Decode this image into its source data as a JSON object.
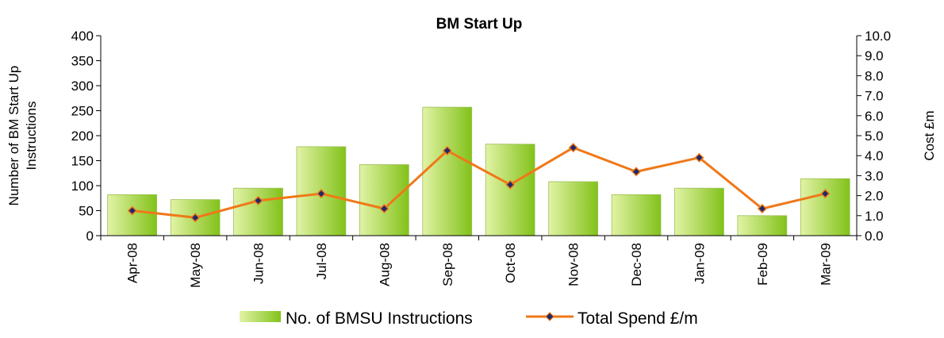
{
  "chart_data": {
    "type": "bar",
    "title": "BM Start Up",
    "ylabel": "Number of BM Start Up Instructions",
    "y2label": "Cost £m",
    "categories": [
      "Apr-08",
      "May-08",
      "Jun-08",
      "Jul-08",
      "Aug-08",
      "Sep-08",
      "Oct-08",
      "Nov-08",
      "Dec-08",
      "Jan-09",
      "Feb-09",
      "Mar-09"
    ],
    "ylim": [
      0,
      400
    ],
    "y2lim": [
      0,
      10
    ],
    "yticks": [
      "0",
      "50",
      "100",
      "150",
      "200",
      "250",
      "300",
      "350",
      "400"
    ],
    "y2ticks": [
      "0.0",
      "1.0",
      "2.0",
      "3.0",
      "4.0",
      "5.0",
      "6.0",
      "7.0",
      "8.0",
      "9.0",
      "10.0"
    ],
    "series": [
      {
        "name": "No. of BMSU Instructions",
        "type": "bar",
        "axis": "left",
        "values": [
          82,
          72,
          95,
          178,
          142,
          257,
          183,
          108,
          82,
          95,
          40,
          114
        ]
      },
      {
        "name": "Total Spend £/m",
        "type": "line",
        "axis": "right",
        "values": [
          1.25,
          0.9,
          1.75,
          2.1,
          1.35,
          4.25,
          2.55,
          4.4,
          3.2,
          3.9,
          1.35,
          2.1
        ]
      }
    ],
    "grid": false,
    "legend_position": "bottom",
    "colors": {
      "bar_light": "#e2f3a6",
      "bar_dark": "#82c21a",
      "bar_stroke": "#9bbf55",
      "line": "#f07818",
      "marker": "#1f2a6b",
      "axis": "#000000"
    }
  }
}
